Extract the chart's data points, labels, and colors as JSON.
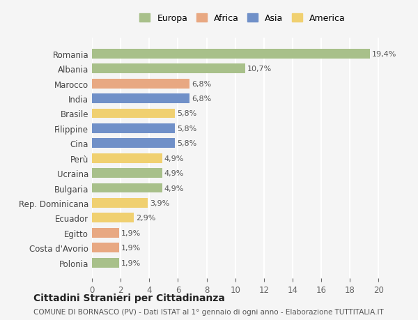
{
  "categories": [
    "Romania",
    "Albania",
    "Marocco",
    "India",
    "Brasile",
    "Filippine",
    "Cina",
    "Perù",
    "Ucraina",
    "Bulgaria",
    "Rep. Dominicana",
    "Ecuador",
    "Egitto",
    "Costa d'Avorio",
    "Polonia"
  ],
  "values": [
    19.4,
    10.7,
    6.8,
    6.8,
    5.8,
    5.8,
    5.8,
    4.9,
    4.9,
    4.9,
    3.9,
    2.9,
    1.9,
    1.9,
    1.9
  ],
  "labels": [
    "19,4%",
    "10,7%",
    "6,8%",
    "6,8%",
    "5,8%",
    "5,8%",
    "5,8%",
    "4,9%",
    "4,9%",
    "4,9%",
    "3,9%",
    "2,9%",
    "1,9%",
    "1,9%",
    "1,9%"
  ],
  "colors": [
    "#a8c08a",
    "#a8c08a",
    "#e8a882",
    "#7090c8",
    "#f0d070",
    "#7090c8",
    "#7090c8",
    "#f0d070",
    "#a8c08a",
    "#a8c08a",
    "#f0d070",
    "#f0d070",
    "#e8a882",
    "#e8a882",
    "#a8c08a"
  ],
  "continents": [
    "Europa",
    "Europa",
    "Africa",
    "Asia",
    "America",
    "Asia",
    "Asia",
    "America",
    "Europa",
    "Europa",
    "America",
    "America",
    "Africa",
    "Africa",
    "Europa"
  ],
  "legend_labels": [
    "Europa",
    "Africa",
    "Asia",
    "America"
  ],
  "legend_colors": [
    "#a8c08a",
    "#e8a882",
    "#7090c8",
    "#f0d070"
  ],
  "title": "Cittadini Stranieri per Cittadinanza",
  "subtitle": "COMUNE DI BORNASCO (PV) - Dati ISTAT al 1° gennaio di ogni anno - Elaborazione TUTTITALIA.IT",
  "xlim": [
    0,
    21
  ],
  "xticks": [
    0,
    2,
    4,
    6,
    8,
    10,
    12,
    14,
    16,
    18,
    20
  ],
  "background_color": "#f5f5f5",
  "grid_color": "#ffffff",
  "bar_height": 0.65
}
